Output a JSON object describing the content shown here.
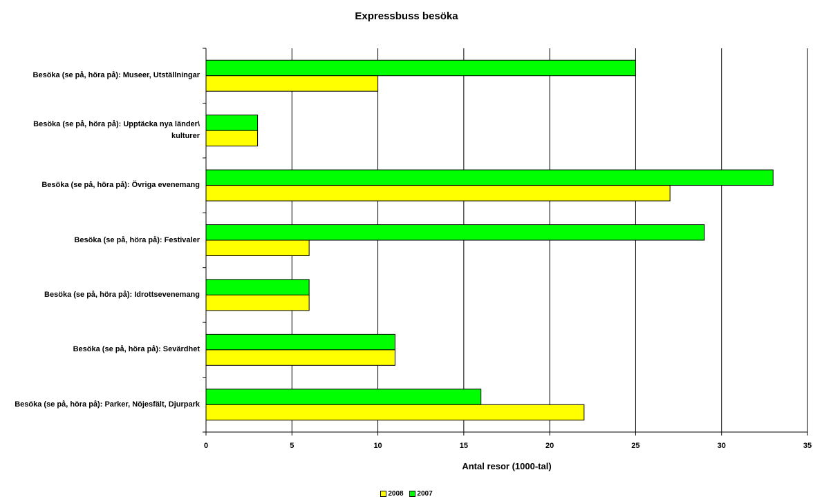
{
  "chart_data": {
    "type": "bar",
    "orientation": "horizontal",
    "title": "Expressbuss besöka",
    "xlabel": "Antal resor (1000-tal)",
    "ylabel": "",
    "xlim": [
      0,
      35
    ],
    "x_ticks": [
      0,
      5,
      10,
      15,
      20,
      25,
      30,
      35
    ],
    "grid": "vertical",
    "legend_position": "bottom",
    "categories": [
      "Besöka (se på, höra på): Museer, Utställningar",
      "Besöka (se på, höra på): Upptäcka nya länder\\ kulturer",
      "Besöka (se på, höra på): Övriga evenemang",
      "Besöka (se på, höra på): Festivaler",
      "Besöka (se på, höra på): Idrottsevenemang",
      "Besöka (se på, höra på): Sevärdhet",
      "Besöka (se på, höra på): Parker, Nöjesfält, Djurpark"
    ],
    "series": [
      {
        "name": "2008",
        "color": "#ffff00",
        "values": [
          10,
          3,
          27,
          6,
          6,
          11,
          22
        ]
      },
      {
        "name": "2007",
        "color": "#00ff00",
        "values": [
          25,
          3,
          33,
          29,
          6,
          11,
          16
        ]
      }
    ]
  }
}
